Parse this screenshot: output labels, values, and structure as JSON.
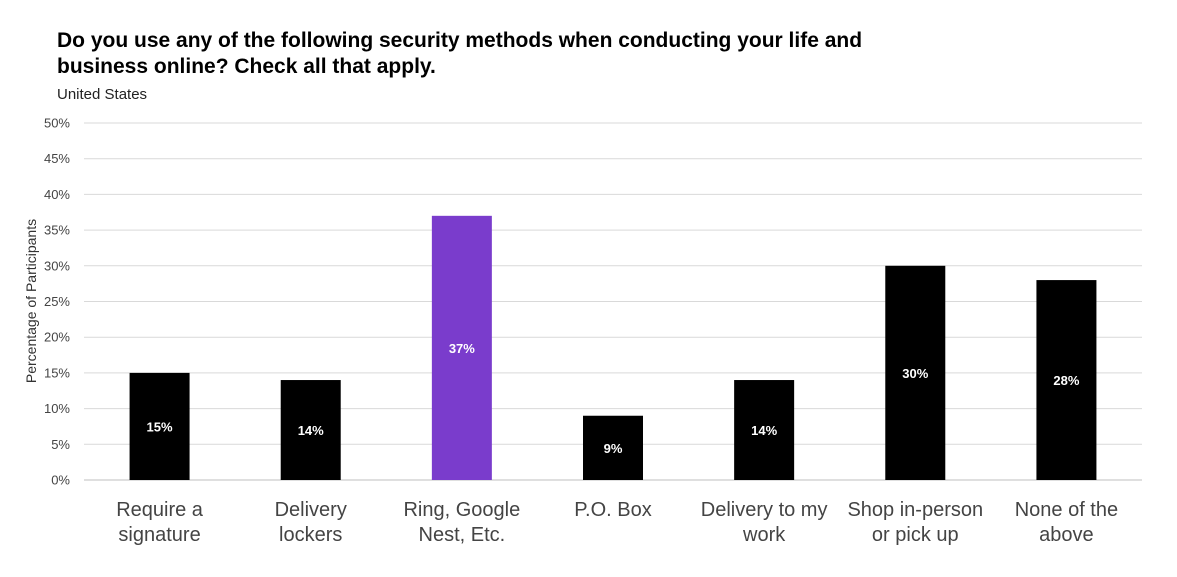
{
  "chart_data": {
    "type": "bar",
    "title": "Do you use any of the following security methods when conducting your life and business online? Check all that apply.",
    "subtitle": "United States",
    "xlabel": "",
    "ylabel": "Percentage of Participants",
    "ylim": [
      0,
      50
    ],
    "yticks": [
      0,
      5,
      10,
      15,
      20,
      25,
      30,
      35,
      40,
      45,
      50
    ],
    "ytick_labels": [
      "0%",
      "5%",
      "10%",
      "15%",
      "20%",
      "25%",
      "30%",
      "35%",
      "40%",
      "45%",
      "50%"
    ],
    "categories": [
      [
        "Require a",
        "signature"
      ],
      [
        "Delivery",
        "lockers"
      ],
      [
        "Ring, Google",
        "Nest, Etc."
      ],
      [
        "P.O. Box"
      ],
      [
        "Delivery to my",
        "work"
      ],
      [
        "Shop in-person",
        "or pick up"
      ],
      [
        "None of the",
        "above"
      ]
    ],
    "values": [
      15,
      14,
      37,
      9,
      14,
      30,
      28
    ],
    "data_labels": [
      "15%",
      "14%",
      "37%",
      "9%",
      "14%",
      "30%",
      "28%"
    ],
    "colors": [
      "#000000",
      "#000000",
      "#7a3ccc",
      "#000000",
      "#000000",
      "#000000",
      "#000000"
    ],
    "grid": true,
    "gridline_color": "#d9d9d9",
    "axis_color": "#bfbfbf"
  }
}
